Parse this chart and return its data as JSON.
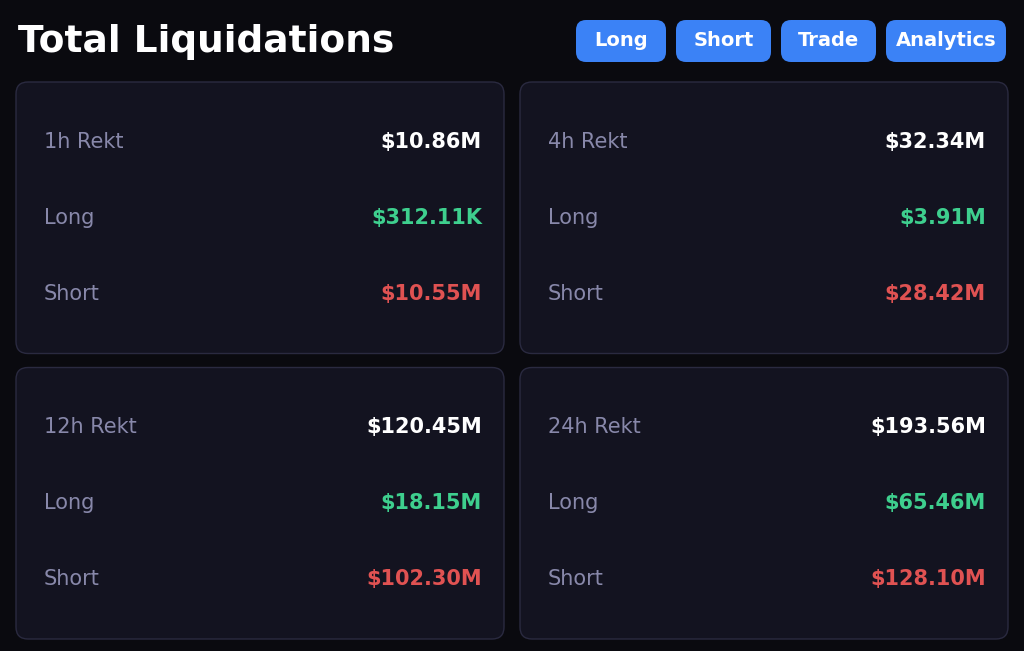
{
  "title": "Total Liquidations",
  "buttons": [
    "Long",
    "Short",
    "Trade",
    "Analytics"
  ],
  "background_color": "#0a0a0f",
  "card_bg_color": "#131320",
  "card_border_color": "#2a2a40",
  "button_color": "#3b82f6",
  "button_text_color": "#ffffff",
  "title_color": "#ffffff",
  "label_color": "#8888aa",
  "rekt_color": "#ffffff",
  "long_color": "#3ecf8e",
  "short_color": "#e05252",
  "cards": [
    {
      "period": "1h Rekt",
      "rekt_value": "$10.86M",
      "long_value": "$312.11K",
      "short_value": "$10.55M"
    },
    {
      "period": "4h Rekt",
      "rekt_value": "$32.34M",
      "long_value": "$3.91M",
      "short_value": "$28.42M"
    },
    {
      "period": "12h Rekt",
      "rekt_value": "$120.45M",
      "long_value": "$18.15M",
      "short_value": "$102.30M"
    },
    {
      "period": "24h Rekt",
      "rekt_value": "$193.56M",
      "long_value": "$65.46M",
      "short_value": "$128.10M"
    }
  ],
  "fig_width": 10.24,
  "fig_height": 6.51,
  "dpi": 100
}
